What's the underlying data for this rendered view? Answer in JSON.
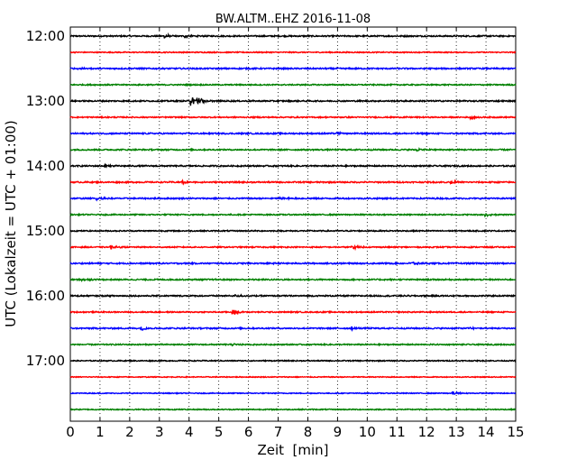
{
  "chart_data": {
    "type": "line",
    "title": "BW.ALTM..EHZ 2016-11-08",
    "xlabel": "Zeit  [min]",
    "ylabel": "UTC (Lokalzeit = UTC + 01:00)",
    "xlim": [
      0,
      15
    ],
    "x_ticks": [
      "0",
      "1",
      "2",
      "3",
      "4",
      "5",
      "6",
      "7",
      "8",
      "9",
      "10",
      "11",
      "12",
      "13",
      "14",
      "15"
    ],
    "y_ticks": [
      "12:00",
      "13:00",
      "14:00",
      "15:00",
      "16:00",
      "17:00"
    ],
    "grid": "vertical dotted",
    "traces": [
      {
        "start": "12:00",
        "color": "#000000",
        "noise": 0.45,
        "events": [
          {
            "t": 3.2,
            "amp": 1.4
          },
          {
            "t": 3.9,
            "amp": 0.9
          }
        ]
      },
      {
        "start": "12:15",
        "color": "#ff0000",
        "noise": 0.35,
        "events": []
      },
      {
        "start": "12:30",
        "color": "#0000ff",
        "noise": 0.45,
        "events": [
          {
            "t": 0.2,
            "amp": 1.0
          }
        ]
      },
      {
        "start": "12:45",
        "color": "#008000",
        "noise": 0.4,
        "events": []
      },
      {
        "start": "13:00",
        "color": "#000000",
        "noise": 0.45,
        "events": [
          {
            "t": 4.1,
            "amp": 3.2
          },
          {
            "t": 4.3,
            "amp": 2.2
          }
        ]
      },
      {
        "start": "13:15",
        "color": "#ff0000",
        "noise": 0.4,
        "events": [
          {
            "t": 13.5,
            "amp": 1.2
          }
        ]
      },
      {
        "start": "13:30",
        "color": "#0000ff",
        "noise": 0.45,
        "events": [
          {
            "t": 9.0,
            "amp": 0.8
          }
        ]
      },
      {
        "start": "13:45",
        "color": "#008000",
        "noise": 0.45,
        "events": [
          {
            "t": 11.7,
            "amp": 1.0
          }
        ]
      },
      {
        "start": "14:00",
        "color": "#000000",
        "noise": 0.45,
        "events": [
          {
            "t": 1.2,
            "amp": 0.9
          }
        ]
      },
      {
        "start": "14:15",
        "color": "#ff0000",
        "noise": 0.45,
        "events": [
          {
            "t": 3.8,
            "amp": 1.0
          },
          {
            "t": 12.8,
            "amp": 1.1
          }
        ]
      },
      {
        "start": "14:30",
        "color": "#0000ff",
        "noise": 0.45,
        "events": [
          {
            "t": 0.9,
            "amp": 1.0
          },
          {
            "t": 7.1,
            "amp": 1.0
          }
        ]
      },
      {
        "start": "14:45",
        "color": "#008000",
        "noise": 0.4,
        "events": [
          {
            "t": 14.0,
            "amp": 1.1
          }
        ]
      },
      {
        "start": "15:00",
        "color": "#000000",
        "noise": 0.4,
        "events": []
      },
      {
        "start": "15:15",
        "color": "#ff0000",
        "noise": 0.4,
        "events": [
          {
            "t": 1.4,
            "amp": 1.0
          },
          {
            "t": 9.5,
            "amp": 1.6
          }
        ]
      },
      {
        "start": "15:30",
        "color": "#0000ff",
        "noise": 0.45,
        "events": [
          {
            "t": 11.5,
            "amp": 1.0
          }
        ]
      },
      {
        "start": "15:45",
        "color": "#008000",
        "noise": 0.45,
        "events": [
          {
            "t": 0.4,
            "amp": 0.8
          }
        ]
      },
      {
        "start": "16:00",
        "color": "#000000",
        "noise": 0.45,
        "events": [
          {
            "t": 5.6,
            "amp": 1.0
          }
        ]
      },
      {
        "start": "16:15",
        "color": "#ff0000",
        "noise": 0.4,
        "events": [
          {
            "t": 5.5,
            "amp": 1.8
          }
        ]
      },
      {
        "start": "16:30",
        "color": "#0000ff",
        "noise": 0.45,
        "events": [
          {
            "t": 2.4,
            "amp": 1.3
          },
          {
            "t": 9.5,
            "amp": 0.9
          },
          {
            "t": 13.5,
            "amp": 1.0
          }
        ]
      },
      {
        "start": "16:45",
        "color": "#008000",
        "noise": 0.4,
        "events": [
          {
            "t": 5.5,
            "amp": 0.8
          }
        ]
      },
      {
        "start": "17:00",
        "color": "#000000",
        "noise": 0.35,
        "events": []
      },
      {
        "start": "17:15",
        "color": "#ff0000",
        "noise": 0.3,
        "events": []
      },
      {
        "start": "17:30",
        "color": "#0000ff",
        "noise": 0.3,
        "events": [
          {
            "t": 12.9,
            "amp": 1.2
          }
        ]
      },
      {
        "start": "17:45",
        "color": "#008000",
        "noise": 0.35,
        "events": []
      }
    ]
  }
}
